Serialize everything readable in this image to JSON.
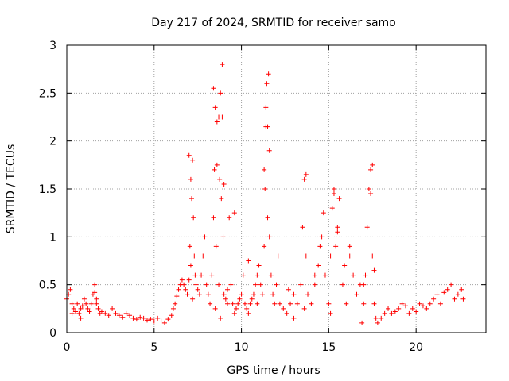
{
  "chart_data": {
    "type": "scatter",
    "title": "Day 217 of 2024, SRMTID for receiver samo",
    "xlabel": "GPS time / hours",
    "ylabel": "SRMTID / TECUs",
    "xlim": [
      0,
      24
    ],
    "ylim": [
      0,
      3
    ],
    "xticks": [
      0,
      5,
      10,
      15,
      20
    ],
    "yticks": [
      0,
      0.5,
      1,
      1.5,
      2,
      2.5,
      3
    ],
    "ytick_labels": [
      "0",
      "0.5",
      "1",
      "1.5",
      "2",
      "2.5",
      "3"
    ],
    "grid": true,
    "marker": "+",
    "series": [
      {
        "name": "samo",
        "color": "#ff0000",
        "x": [
          0.0,
          0.1,
          0.2,
          0.3,
          0.4,
          0.5,
          0.6,
          0.7,
          0.8,
          0.9,
          1.0,
          1.1,
          1.2,
          1.3,
          1.4,
          1.5,
          1.6,
          1.7,
          1.8,
          1.9,
          2.0,
          2.2,
          2.4,
          2.6,
          2.8,
          3.0,
          3.2,
          3.4,
          3.6,
          3.8,
          4.0,
          4.2,
          4.4,
          4.6,
          4.8,
          5.0,
          5.2,
          5.4,
          5.6,
          5.8,
          6.0,
          6.1,
          6.2,
          6.3,
          6.4,
          6.5,
          6.6,
          6.7,
          6.8,
          6.9,
          7.0,
          7.05,
          7.1,
          7.15,
          7.2,
          7.25,
          7.3,
          7.35,
          7.4,
          7.5,
          7.6,
          7.7,
          7.8,
          7.9,
          8.0,
          8.1,
          8.2,
          8.3,
          8.4,
          8.45,
          8.5,
          8.55,
          8.6,
          8.7,
          8.75,
          8.8,
          8.85,
          8.9,
          8.95,
          9.0,
          9.1,
          9.2,
          9.3,
          9.4,
          9.5,
          9.6,
          9.7,
          9.8,
          9.9,
          10.0,
          10.1,
          10.2,
          10.3,
          10.4,
          10.5,
          10.6,
          10.7,
          10.8,
          10.9,
          11.0,
          11.1,
          11.2,
          11.3,
          11.35,
          11.4,
          11.45,
          11.5,
          11.55,
          11.6,
          11.7,
          11.8,
          11.9,
          12.0,
          12.2,
          12.4,
          12.6,
          12.8,
          13.0,
          13.2,
          13.4,
          13.5,
          13.6,
          13.7,
          13.8,
          14.0,
          14.2,
          14.4,
          14.6,
          14.8,
          15.0,
          15.1,
          15.2,
          15.3,
          15.4,
          15.5,
          15.6,
          15.8,
          16.0,
          16.2,
          16.4,
          16.6,
          16.8,
          17.0,
          17.1,
          17.2,
          17.3,
          17.4,
          17.5,
          17.6,
          17.7,
          17.8,
          18.0,
          18.2,
          18.4,
          18.6,
          18.8,
          19.0,
          19.2,
          19.4,
          19.6,
          19.8,
          20.0,
          20.2,
          20.4,
          20.6,
          20.8,
          21.0,
          21.2,
          21.4,
          21.6,
          21.8,
          22.0,
          22.2,
          22.4,
          22.6,
          22.7,
          0.3,
          0.8,
          1.6,
          1.7,
          7.0,
          7.1,
          7.2,
          8.4,
          8.5,
          8.6,
          8.7,
          8.8,
          8.9,
          9.0,
          9.2,
          11.3,
          11.4,
          11.5,
          11.6,
          13.6,
          13.7,
          14.5,
          14.7,
          15.1,
          15.3,
          15.5,
          16.9,
          17.0,
          17.4,
          17.5,
          17.6,
          12.1,
          12.7,
          10.4,
          9.6,
          14.2,
          16.2,
          13.0,
          10.9,
          15.9
        ],
        "y": [
          0.35,
          0.4,
          0.45,
          0.3,
          0.25,
          0.22,
          0.3,
          0.2,
          0.25,
          0.28,
          0.35,
          0.3,
          0.25,
          0.22,
          0.3,
          0.4,
          0.42,
          0.35,
          0.25,
          0.2,
          0.22,
          0.2,
          0.18,
          0.25,
          0.2,
          0.18,
          0.16,
          0.2,
          0.18,
          0.15,
          0.14,
          0.16,
          0.15,
          0.13,
          0.14,
          0.12,
          0.15,
          0.12,
          0.1,
          0.14,
          0.18,
          0.25,
          0.3,
          0.38,
          0.45,
          0.5,
          0.55,
          0.5,
          0.45,
          0.4,
          0.55,
          0.9,
          0.7,
          1.4,
          1.8,
          1.2,
          0.8,
          0.6,
          0.5,
          0.45,
          0.4,
          0.6,
          0.8,
          1.0,
          0.5,
          0.4,
          0.3,
          0.6,
          1.2,
          1.7,
          2.35,
          0.9,
          2.2,
          0.5,
          1.6,
          2.5,
          1.4,
          2.8,
          1.0,
          0.4,
          0.35,
          0.3,
          1.2,
          0.5,
          0.3,
          0.2,
          0.25,
          0.3,
          0.35,
          0.4,
          0.6,
          0.3,
          0.25,
          0.2,
          0.3,
          0.35,
          0.4,
          0.5,
          0.6,
          0.7,
          0.5,
          0.4,
          0.9,
          1.5,
          2.15,
          2.6,
          1.2,
          2.7,
          1.0,
          0.6,
          0.4,
          0.3,
          0.5,
          0.3,
          0.25,
          0.2,
          0.3,
          0.4,
          0.3,
          0.5,
          1.1,
          1.6,
          0.8,
          0.4,
          0.3,
          0.5,
          0.7,
          1.0,
          0.6,
          0.3,
          0.8,
          1.3,
          1.5,
          0.9,
          1.1,
          1.4,
          0.5,
          0.3,
          0.8,
          0.6,
          0.4,
          0.5,
          0.3,
          0.6,
          1.1,
          1.5,
          1.7,
          0.8,
          0.3,
          0.15,
          0.1,
          0.15,
          0.2,
          0.25,
          0.2,
          0.22,
          0.25,
          0.3,
          0.28,
          0.2,
          0.25,
          0.22,
          0.3,
          0.28,
          0.25,
          0.3,
          0.35,
          0.4,
          0.3,
          0.42,
          0.45,
          0.5,
          0.35,
          0.4,
          0.45,
          0.35,
          0.2,
          0.15,
          0.5,
          0.3,
          1.85,
          1.6,
          0.35,
          2.55,
          0.25,
          1.75,
          2.25,
          0.15,
          2.25,
          1.55,
          0.45,
          1.7,
          2.35,
          2.15,
          1.9,
          0.25,
          1.65,
          0.9,
          1.25,
          0.2,
          1.45,
          1.05,
          0.1,
          0.5,
          1.45,
          1.75,
          0.65,
          0.8,
          0.45,
          0.75,
          1.25,
          0.6,
          0.9,
          0.15,
          0.3,
          0.7
        ]
      }
    ]
  }
}
